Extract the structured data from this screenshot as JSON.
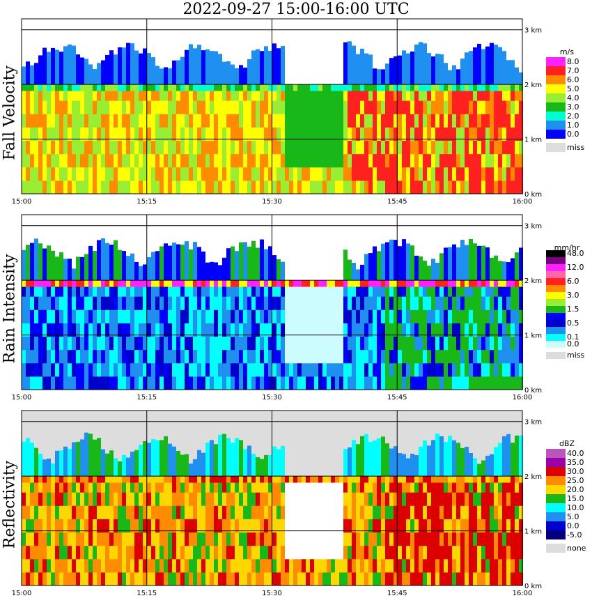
{
  "title": "2022-09-27   15:00-16:00 UTC",
  "chart_data": [
    {
      "type": "heatmap",
      "ylabel": "Fall Velocity",
      "x_ticks": [
        "15:00",
        "15:15",
        "15:30",
        "15:45",
        "16:00"
      ],
      "y_ticks": [
        "0 km",
        "1 km",
        "2 km",
        "3 km"
      ],
      "grid": true,
      "legend": {
        "title": "m/s",
        "placement": "right",
        "entries": [
          {
            "label": "8.0",
            "color": "#ff22ff"
          },
          {
            "label": "7.0",
            "color": "#ff2020"
          },
          {
            "label": "6.0",
            "color": "#ff8c00"
          },
          {
            "label": "5.0",
            "color": "#ffff00"
          },
          {
            "label": "4.0",
            "color": "#99ee33"
          },
          {
            "label": "3.0",
            "color": "#18b818"
          },
          {
            "label": "2.0",
            "color": "#00ffcc"
          },
          {
            "label": "1.0",
            "color": "#1f8ff0"
          },
          {
            "label": "0.0",
            "color": "#0000ff"
          },
          {
            "label": "miss",
            "color": "#dddddd"
          }
        ]
      }
    },
    {
      "type": "heatmap",
      "ylabel": "Rain Intensity",
      "x_ticks": [
        "15:00",
        "15:15",
        "15:30",
        "15:45",
        "16:00"
      ],
      "y_ticks": [
        "0 km",
        "1 km",
        "2 km",
        "3 km"
      ],
      "grid": true,
      "legend": {
        "title": "mm/hr",
        "placement": "right",
        "entries": [
          {
            "label": "48.0",
            "color": "#000000"
          },
          {
            "label": "",
            "color": "#7a0080"
          },
          {
            "label": "12.0",
            "color": "#ff22ff"
          },
          {
            "label": "",
            "color": "#ff66aa"
          },
          {
            "label": "6.0",
            "color": "#ff2020"
          },
          {
            "label": "",
            "color": "#ff8c00"
          },
          {
            "label": "3.0",
            "color": "#ffff00"
          },
          {
            "label": "",
            "color": "#99ee33"
          },
          {
            "label": "1.5",
            "color": "#18b818"
          },
          {
            "label": "",
            "color": "#0000ff"
          },
          {
            "label": "0.5",
            "color": "#0000cc"
          },
          {
            "label": "",
            "color": "#1f8ff0"
          },
          {
            "label": "0.1",
            "color": "#00ffff"
          },
          {
            "label": "0.0",
            "color": "#cdfcff"
          },
          {
            "label": "miss",
            "color": "#dddddd"
          }
        ]
      }
    },
    {
      "type": "heatmap",
      "ylabel": "Reflectivity",
      "x_ticks": [
        "15:00",
        "15:15",
        "15:30",
        "15:45",
        "16:00"
      ],
      "y_ticks": [
        "0 km",
        "1 km",
        "2 km",
        "3 km"
      ],
      "grid": true,
      "legend": {
        "title": "dBZ",
        "placement": "right",
        "entries": [
          {
            "label": "40.0",
            "color": "#bb55bb"
          },
          {
            "label": "35.0",
            "color": "#9900aa"
          },
          {
            "label": "30.0",
            "color": "#dd0000"
          },
          {
            "label": "25.0",
            "color": "#ff8c00"
          },
          {
            "label": "20.0",
            "color": "#ffd700"
          },
          {
            "label": "15.0",
            "color": "#18b818"
          },
          {
            "label": "10.0",
            "color": "#00ffff"
          },
          {
            "label": "5.0",
            "color": "#1f8ff0"
          },
          {
            "label": "0.0",
            "color": "#0000cc"
          },
          {
            "label": "-5.0",
            "color": "#000080"
          },
          {
            "label": "none",
            "color": "#dddddd"
          }
        ]
      }
    }
  ]
}
